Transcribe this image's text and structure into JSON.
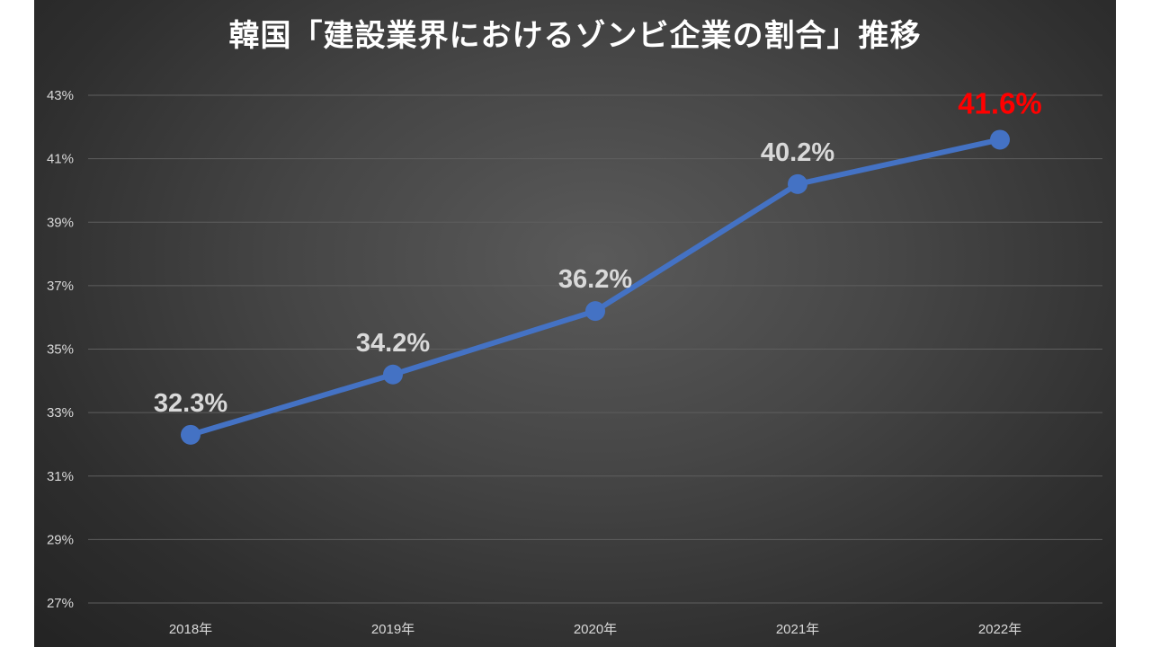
{
  "chart_data": {
    "type": "line",
    "title": "韓国「建設業界におけるゾンビ企業の割合」推移",
    "categories": [
      "2018年",
      "2019年",
      "2020年",
      "2021年",
      "2022年"
    ],
    "series": [
      {
        "values": [
          32.3,
          34.2,
          36.2,
          40.2,
          41.6
        ],
        "data_labels": [
          "32.3%",
          "34.2%",
          "36.2%",
          "40.2%",
          "41.6%"
        ]
      }
    ],
    "ylim": [
      27,
      43
    ],
    "y_ticks": [
      "27%",
      "29%",
      "31%",
      "33%",
      "35%",
      "37%",
      "39%",
      "41%",
      "43%"
    ],
    "y_tick_values": [
      27,
      29,
      31,
      33,
      35,
      37,
      39,
      41,
      43
    ],
    "grid": true,
    "legend": "none",
    "colors": {
      "line": "#4472c4",
      "label": "#d9d9d9",
      "highlight_label": "#ff0000",
      "gridline": "#5e5e5e"
    },
    "highlight_index": 4
  }
}
